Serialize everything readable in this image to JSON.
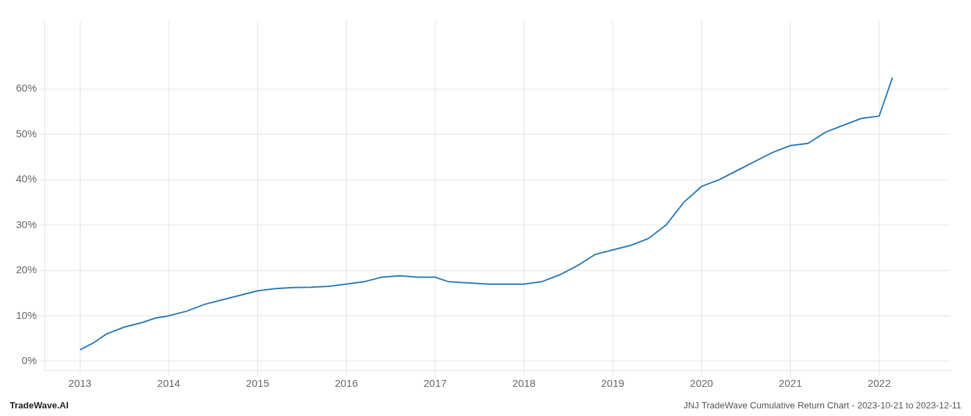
{
  "chart_data": {
    "type": "line",
    "annotations": [
      "TradeWave.AI",
      "JNJ TradeWave Cumulative Return Chart - 2023-10-21 to 2023-12-11"
    ],
    "x": [
      2013.0,
      2013.15,
      2013.3,
      2013.5,
      2013.7,
      2013.85,
      2014.0,
      2014.2,
      2014.4,
      2014.6,
      2014.8,
      2015.0,
      2015.2,
      2015.4,
      2015.6,
      2015.8,
      2016.0,
      2016.2,
      2016.4,
      2016.6,
      2016.8,
      2017.0,
      2017.15,
      2017.4,
      2017.6,
      2017.8,
      2018.0,
      2018.2,
      2018.4,
      2018.6,
      2018.8,
      2019.0,
      2019.2,
      2019.4,
      2019.6,
      2019.8,
      2020.0,
      2020.2,
      2020.4,
      2020.6,
      2020.8,
      2021.0,
      2021.2,
      2021.4,
      2021.6,
      2021.8,
      2022.0,
      2022.15
    ],
    "values": [
      2.5,
      4.0,
      6.0,
      7.5,
      8.5,
      9.5,
      10.0,
      11.0,
      12.5,
      13.5,
      14.5,
      15.5,
      16.0,
      16.2,
      16.3,
      16.5,
      17.0,
      17.5,
      18.5,
      18.8,
      18.5,
      18.5,
      17.5,
      17.2,
      17.0,
      17.0,
      17.0,
      17.5,
      19.0,
      21.0,
      23.5,
      24.5,
      25.5,
      27.0,
      30.0,
      35.0,
      38.5,
      40.0,
      42.0,
      44.0,
      46.0,
      47.5,
      48.0,
      50.5,
      52.0,
      53.5,
      54.0,
      62.5
    ],
    "color": "#2878b5",
    "xlim": [
      2012.6,
      2022.8
    ],
    "xticks": [
      2013,
      2014,
      2015,
      2016,
      2017,
      2018,
      2019,
      2020,
      2021,
      2022
    ],
    "ylim": [
      -2,
      75
    ],
    "yticks": [
      {
        "value": 0,
        "label": "0%"
      },
      {
        "value": 10,
        "label": "10%"
      },
      {
        "value": 20,
        "label": "20%"
      },
      {
        "value": 30,
        "label": "30%"
      },
      {
        "value": 40,
        "label": "40%"
      },
      {
        "value": 50,
        "label": "50%"
      },
      {
        "value": 60,
        "label": "60%"
      }
    ],
    "grid": true
  }
}
